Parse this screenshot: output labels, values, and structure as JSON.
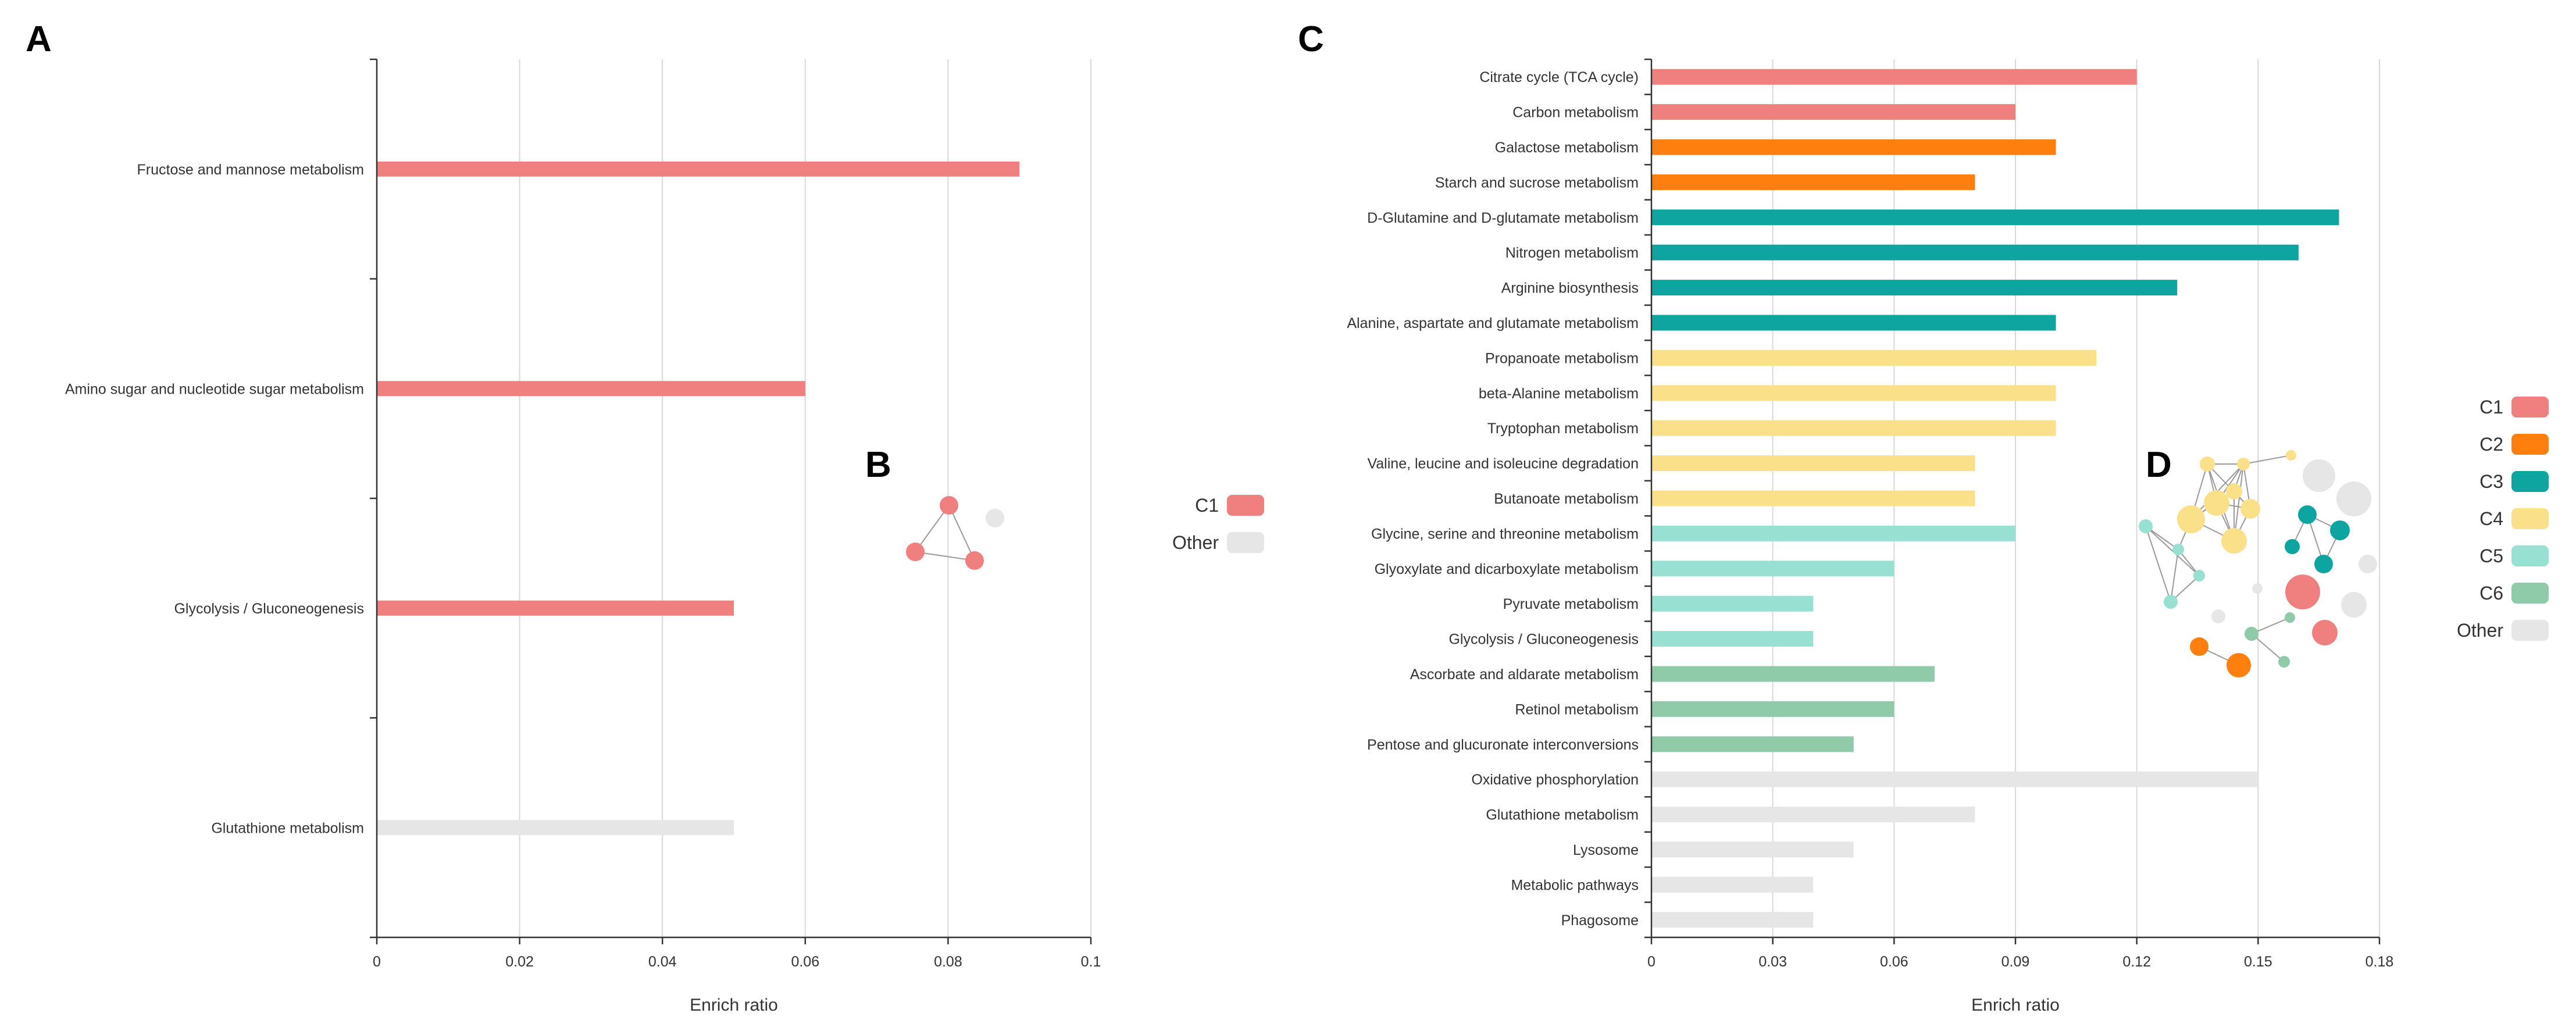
{
  "panels": {
    "a": "A",
    "b": "B",
    "c": "C",
    "d": "D"
  },
  "colors": {
    "C1": "#f08080",
    "C2": "#ff7f0e",
    "C3": "#0ea5a0",
    "C4": "#fbe08a",
    "C5": "#97e0d2",
    "C6": "#8fcba8",
    "Other": "#e6e6e6"
  },
  "chart_data": [
    {
      "id": "A",
      "type": "bar",
      "orientation": "horizontal",
      "xlabel": "Enrich ratio",
      "ylabel": "",
      "xlim": [
        0,
        0.1
      ],
      "xticks": [
        "0",
        "0.02",
        "0.04",
        "0.06",
        "0.08",
        "0.1"
      ],
      "categories": [
        "Fructose and mannose metabolism",
        "Amino sugar and nucleotide sugar metabolism",
        "Glycolysis / Gluconeogenesis",
        "Glutathione metabolism"
      ],
      "values": [
        0.09,
        0.06,
        0.05,
        0.05
      ],
      "groups": [
        "C1",
        "C1",
        "C1",
        "Other"
      ],
      "legend": [
        "C1",
        "Other"
      ]
    },
    {
      "id": "C",
      "type": "bar",
      "orientation": "horizontal",
      "xlabel": "Enrich ratio",
      "ylabel": "",
      "xlim": [
        0,
        0.18
      ],
      "xticks": [
        "0",
        "0.03",
        "0.06",
        "0.09",
        "0.12",
        "0.15",
        "0.18"
      ],
      "categories": [
        "Citrate cycle (TCA cycle)",
        "Carbon metabolism",
        "Galactose metabolism",
        "Starch and sucrose metabolism",
        "D-Glutamine and D-glutamate metabolism",
        "Nitrogen metabolism",
        "Arginine biosynthesis",
        "Alanine, aspartate and glutamate metabolism",
        "Propanoate metabolism",
        "beta-Alanine metabolism",
        "Tryptophan metabolism",
        "Valine, leucine and isoleucine degradation",
        "Butanoate metabolism",
        "Glycine, serine and threonine metabolism",
        "Glyoxylate and dicarboxylate metabolism",
        "Pyruvate metabolism",
        "Glycolysis / Gluconeogenesis",
        "Ascorbate and aldarate metabolism",
        "Retinol metabolism",
        "Pentose and glucuronate interconversions",
        "Oxidative phosphorylation",
        "Glutathione metabolism",
        "Lysosome",
        "Metabolic pathways",
        "Phagosome"
      ],
      "values": [
        0.12,
        0.09,
        0.1,
        0.08,
        0.17,
        0.16,
        0.13,
        0.1,
        0.11,
        0.1,
        0.1,
        0.08,
        0.08,
        0.09,
        0.06,
        0.04,
        0.04,
        0.07,
        0.06,
        0.05,
        0.15,
        0.08,
        0.05,
        0.04,
        0.04
      ],
      "groups": [
        "C1",
        "C1",
        "C2",
        "C2",
        "C3",
        "C3",
        "C3",
        "C3",
        "C4",
        "C4",
        "C4",
        "C4",
        "C4",
        "C5",
        "C5",
        "C5",
        "C5",
        "C6",
        "C6",
        "C6",
        "Other",
        "Other",
        "Other",
        "Other",
        "Other"
      ],
      "legend": [
        "C1",
        "C2",
        "C3",
        "C4",
        "C5",
        "C6",
        "Other"
      ]
    }
  ]
}
